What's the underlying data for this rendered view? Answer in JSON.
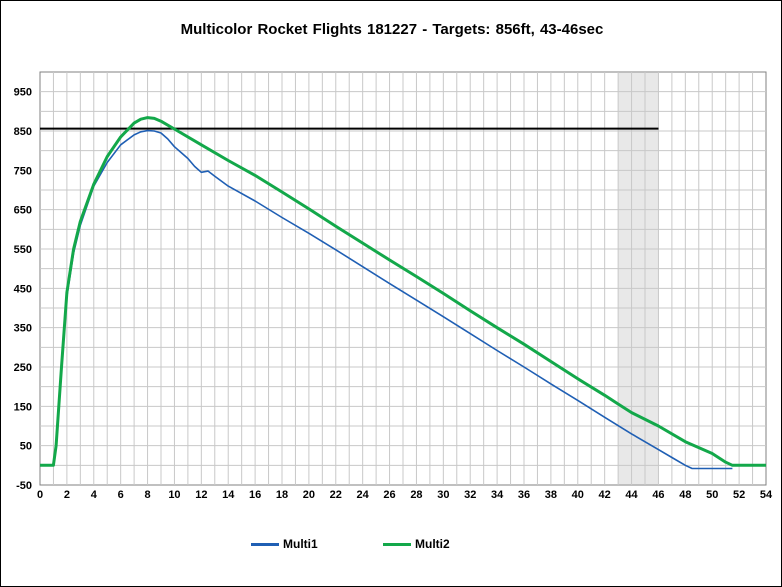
{
  "chart_data": {
    "type": "line",
    "title": "Multicolor Rocket Flights 181227 - Targets: 856ft, 43-46sec",
    "xlabel": "",
    "ylabel": "",
    "xlim": [
      0,
      54
    ],
    "ylim": [
      -50,
      1000
    ],
    "x_ticks": [
      0,
      2,
      4,
      6,
      8,
      10,
      12,
      14,
      16,
      18,
      20,
      22,
      24,
      26,
      28,
      30,
      32,
      34,
      36,
      38,
      40,
      42,
      44,
      46,
      48,
      50,
      52,
      54
    ],
    "y_ticks": [
      -50,
      50,
      150,
      250,
      350,
      450,
      550,
      650,
      750,
      850,
      950
    ],
    "grid": true,
    "legend_position": "bottom",
    "target_altitude": 856,
    "target_time_window": [
      43,
      46
    ],
    "series": [
      {
        "name": "Multi1",
        "color": "#1f5fb4",
        "x": [
          0,
          1,
          1.2,
          1.6,
          2,
          2.5,
          3,
          4,
          5,
          6,
          7,
          7.5,
          8,
          8.5,
          9,
          9.5,
          10,
          10.5,
          11,
          11.5,
          12,
          12.5,
          13,
          14,
          16,
          18,
          20,
          22,
          24,
          26,
          28,
          30,
          32,
          34,
          36,
          38,
          40,
          42,
          44,
          46,
          47,
          48,
          48.5,
          49,
          50,
          51,
          51.5
        ],
        "y": [
          0,
          0,
          50,
          250,
          430,
          540,
          610,
          710,
          770,
          815,
          840,
          848,
          851,
          850,
          845,
          830,
          810,
          795,
          780,
          760,
          745,
          748,
          735,
          710,
          672,
          630,
          590,
          548,
          505,
          462,
          420,
          378,
          335,
          292,
          250,
          207,
          165,
          122,
          80,
          40,
          20,
          0,
          -8,
          -8,
          -8,
          -8,
          -8
        ]
      },
      {
        "name": "Multi2",
        "color": "#13a84a",
        "x": [
          0,
          1,
          1.2,
          1.6,
          2,
          2.5,
          3,
          4,
          5,
          6,
          7,
          7.5,
          8,
          8.5,
          9,
          10,
          12,
          14,
          16,
          18,
          20,
          22,
          24,
          26,
          28,
          30,
          32,
          34,
          36,
          38,
          40,
          42,
          43,
          44,
          46,
          48,
          50,
          51,
          51.5,
          52,
          54
        ],
        "y": [
          0,
          0,
          50,
          250,
          440,
          550,
          620,
          715,
          785,
          835,
          870,
          880,
          884,
          882,
          875,
          855,
          815,
          775,
          737,
          695,
          652,
          608,
          565,
          522,
          480,
          437,
          393,
          350,
          308,
          264,
          220,
          178,
          156,
          134,
          100,
          60,
          30,
          8,
          0,
          0,
          0
        ]
      }
    ]
  }
}
